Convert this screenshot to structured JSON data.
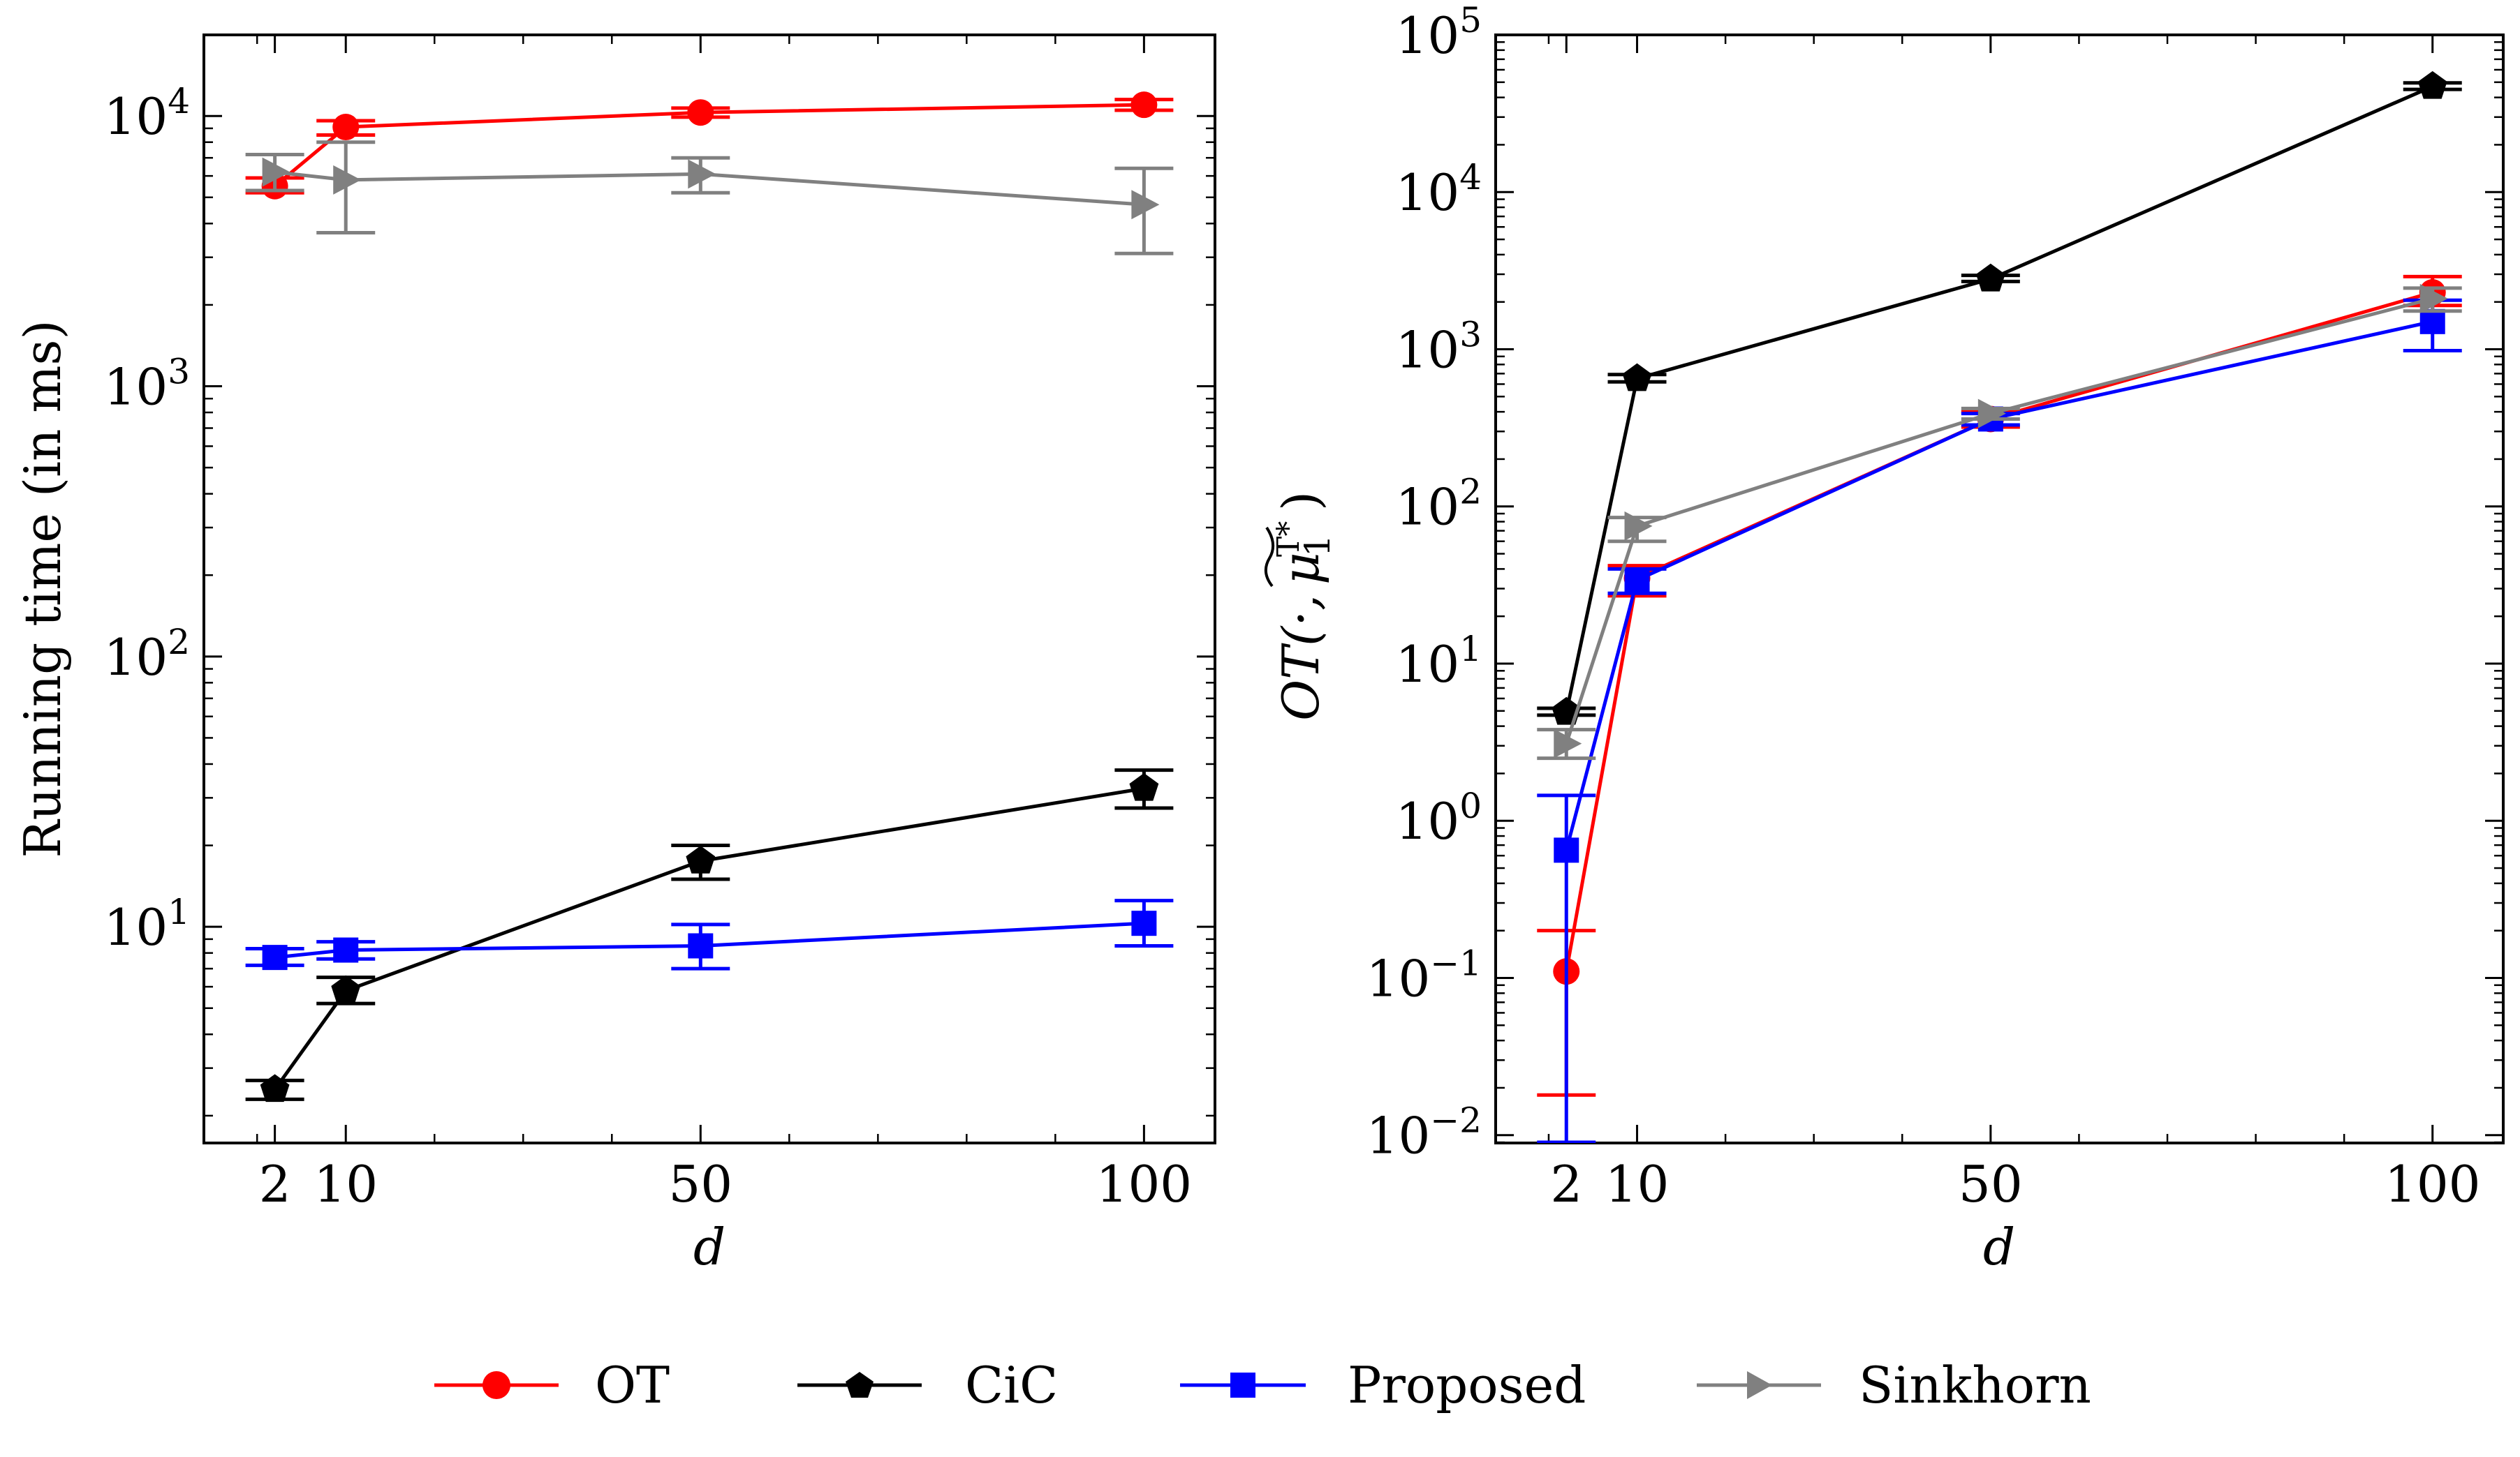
{
  "chart_data": [
    {
      "type": "line",
      "panel": "left",
      "xlabel": "d",
      "ylabel": "Running time (in ms)",
      "yscale": "log",
      "ylim_exponent": [
        0.2,
        4.3
      ],
      "xlim": [
        -6,
        108
      ],
      "x": [
        2,
        10,
        50,
        100
      ],
      "x_tick_labels": [
        "2",
        "10",
        "50",
        "100"
      ],
      "y_ticks": [
        {
          "base": "10",
          "exp": "1",
          "value": 10
        },
        {
          "base": "10",
          "exp": "2",
          "value": 100
        },
        {
          "base": "10",
          "exp": "3",
          "value": 1000
        },
        {
          "base": "10",
          "exp": "4",
          "value": 10000
        }
      ],
      "series": [
        {
          "name": "OT",
          "marker": "circle",
          "values": [
            5500,
            9100,
            10300,
            11000
          ],
          "err_low": [
            5200,
            8500,
            9900,
            10500
          ],
          "err_high": [
            5900,
            9600,
            10700,
            11500
          ]
        },
        {
          "name": "CiC",
          "marker": "pentagon",
          "values": [
            2.5,
            5.8,
            17.5,
            32.5
          ],
          "err_low": [
            2.3,
            5.2,
            15.0,
            27.5
          ],
          "err_high": [
            2.7,
            6.5,
            20.0,
            38.0
          ]
        },
        {
          "name": "Proposed",
          "marker": "square",
          "values": [
            7.7,
            8.2,
            8.5,
            10.3
          ],
          "err_low": [
            7.2,
            7.6,
            7.0,
            8.5
          ],
          "err_high": [
            8.3,
            8.8,
            10.2,
            12.5
          ]
        },
        {
          "name": "Sinkhorn",
          "marker": "triangle-right",
          "values": [
            6200,
            5800,
            6100,
            4700
          ],
          "err_low": [
            5300,
            3700,
            5200,
            3100
          ],
          "err_high": [
            7200,
            8000,
            7000,
            6400
          ]
        }
      ]
    },
    {
      "type": "line",
      "panel": "right",
      "xlabel": "d",
      "ylabel": "OT(·, μ̃₁ᵀ*)",
      "ylabel_main": "OT(·,",
      "ylabel_mu": "μ",
      "ylabel_sub": "1",
      "ylabel_sup": "T*",
      "ylabel_close": ")",
      "yscale": "log",
      "ylim_exponent": [
        -2.05,
        5.0
      ],
      "xlim": [
        -6,
        108
      ],
      "x": [
        2,
        10,
        50,
        100
      ],
      "x_tick_labels": [
        "2",
        "10",
        "50",
        "100"
      ],
      "y_ticks": [
        {
          "base": "10",
          "exp": "−2",
          "value": 0.01
        },
        {
          "base": "10",
          "exp": "−1",
          "value": 0.1
        },
        {
          "base": "10",
          "exp": "0",
          "value": 1
        },
        {
          "base": "10",
          "exp": "1",
          "value": 10
        },
        {
          "base": "10",
          "exp": "2",
          "value": 100
        },
        {
          "base": "10",
          "exp": "3",
          "value": 1000
        },
        {
          "base": "10",
          "exp": "4",
          "value": 10000
        },
        {
          "base": "10",
          "exp": "5",
          "value": 100000
        }
      ],
      "series": [
        {
          "name": "OT",
          "marker": "circle",
          "values": [
            0.11,
            35,
            360,
            2300
          ],
          "err_low": [
            0.018,
            27,
            320,
            1900
          ],
          "err_high": [
            0.2,
            42,
            400,
            2900
          ]
        },
        {
          "name": "CiC",
          "marker": "pentagon",
          "values": [
            4.9,
            650,
            2800,
            47000
          ],
          "err_low": [
            4.7,
            620,
            2700,
            45000
          ],
          "err_high": [
            5.2,
            690,
            2950,
            49500
          ]
        },
        {
          "name": "Proposed",
          "marker": "square",
          "values": [
            0.65,
            34,
            360,
            1500
          ],
          "err_low": 0.009,
          "err_low_list": [
            0.009,
            28,
            330,
            980
          ],
          "err_high": [
            1.45,
            40,
            390,
            2050
          ]
        },
        {
          "name": "Sinkhorn",
          "marker": "triangle-right",
          "values": [
            3.1,
            75,
            390,
            2100
          ],
          "err_low": [
            2.5,
            60,
            360,
            1750
          ],
          "err_high": [
            3.8,
            85,
            420,
            2450
          ]
        }
      ]
    }
  ],
  "legend": {
    "placement": "bottom-center",
    "items": [
      {
        "label": "OT",
        "color": "#ff0000",
        "marker": "circle"
      },
      {
        "label": "CiC",
        "color": "#000000",
        "marker": "pentagon"
      },
      {
        "label": "Proposed",
        "color": "#0000ff",
        "marker": "square"
      },
      {
        "label": "Sinkhorn",
        "color": "#808080",
        "marker": "triangle-right"
      }
    ]
  },
  "colors": {
    "OT": "#ff0000",
    "CiC": "#000000",
    "Proposed": "#0000ff",
    "Sinkhorn": "#808080"
  }
}
